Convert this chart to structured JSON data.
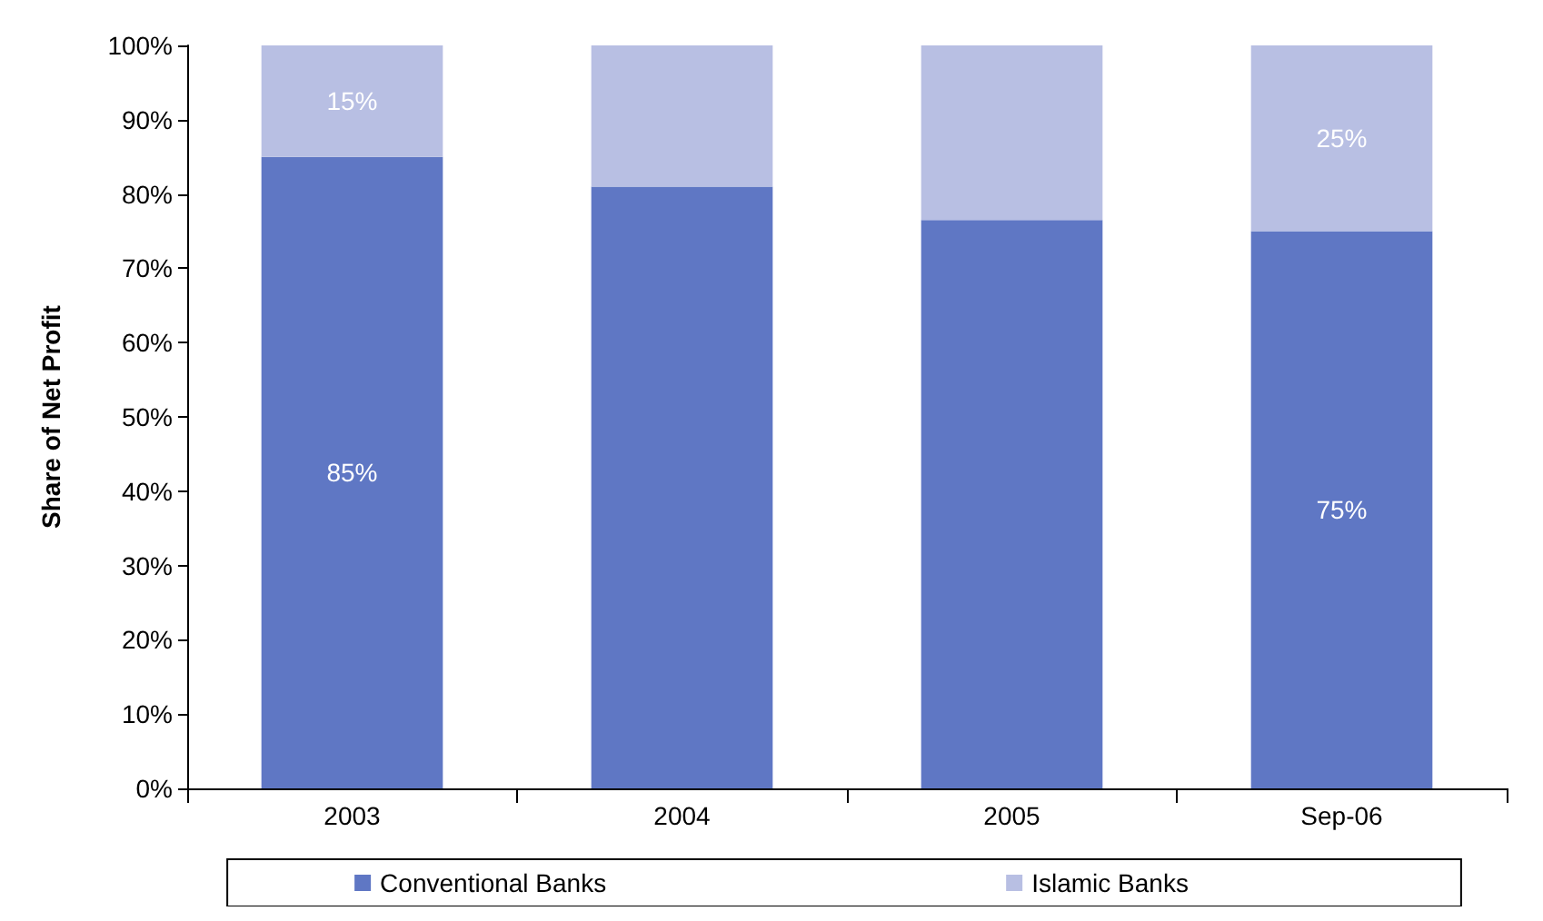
{
  "chart_data": {
    "type": "bar",
    "ylabel": "Share of Net Profit",
    "categories": [
      "2003",
      "2004",
      "2005",
      "Sep-06"
    ],
    "stacked": true,
    "series": [
      {
        "name": "Conventional Banks",
        "color": "#5f77c4",
        "values": [
          85,
          81,
          76.5,
          75
        ],
        "value_labels": [
          "85%",
          null,
          null,
          "75%"
        ]
      },
      {
        "name": "Islamic Banks",
        "color": "#b8bfe3",
        "values": [
          15,
          19,
          23.5,
          25
        ],
        "value_labels": [
          "15%",
          null,
          null,
          "25%"
        ]
      }
    ],
    "ylim": [
      0,
      100
    ],
    "yticks": [
      {
        "value": 0,
        "label": "0%"
      },
      {
        "value": 10,
        "label": "10%"
      },
      {
        "value": 20,
        "label": "20%"
      },
      {
        "value": 30,
        "label": "30%"
      },
      {
        "value": 40,
        "label": "40%"
      },
      {
        "value": 50,
        "label": "50%"
      },
      {
        "value": 60,
        "label": "60%"
      },
      {
        "value": 70,
        "label": "70%"
      },
      {
        "value": 80,
        "label": "80%"
      },
      {
        "value": 90,
        "label": "90%"
      },
      {
        "value": 100,
        "label": "100%"
      }
    ],
    "legend": "bottom"
  }
}
